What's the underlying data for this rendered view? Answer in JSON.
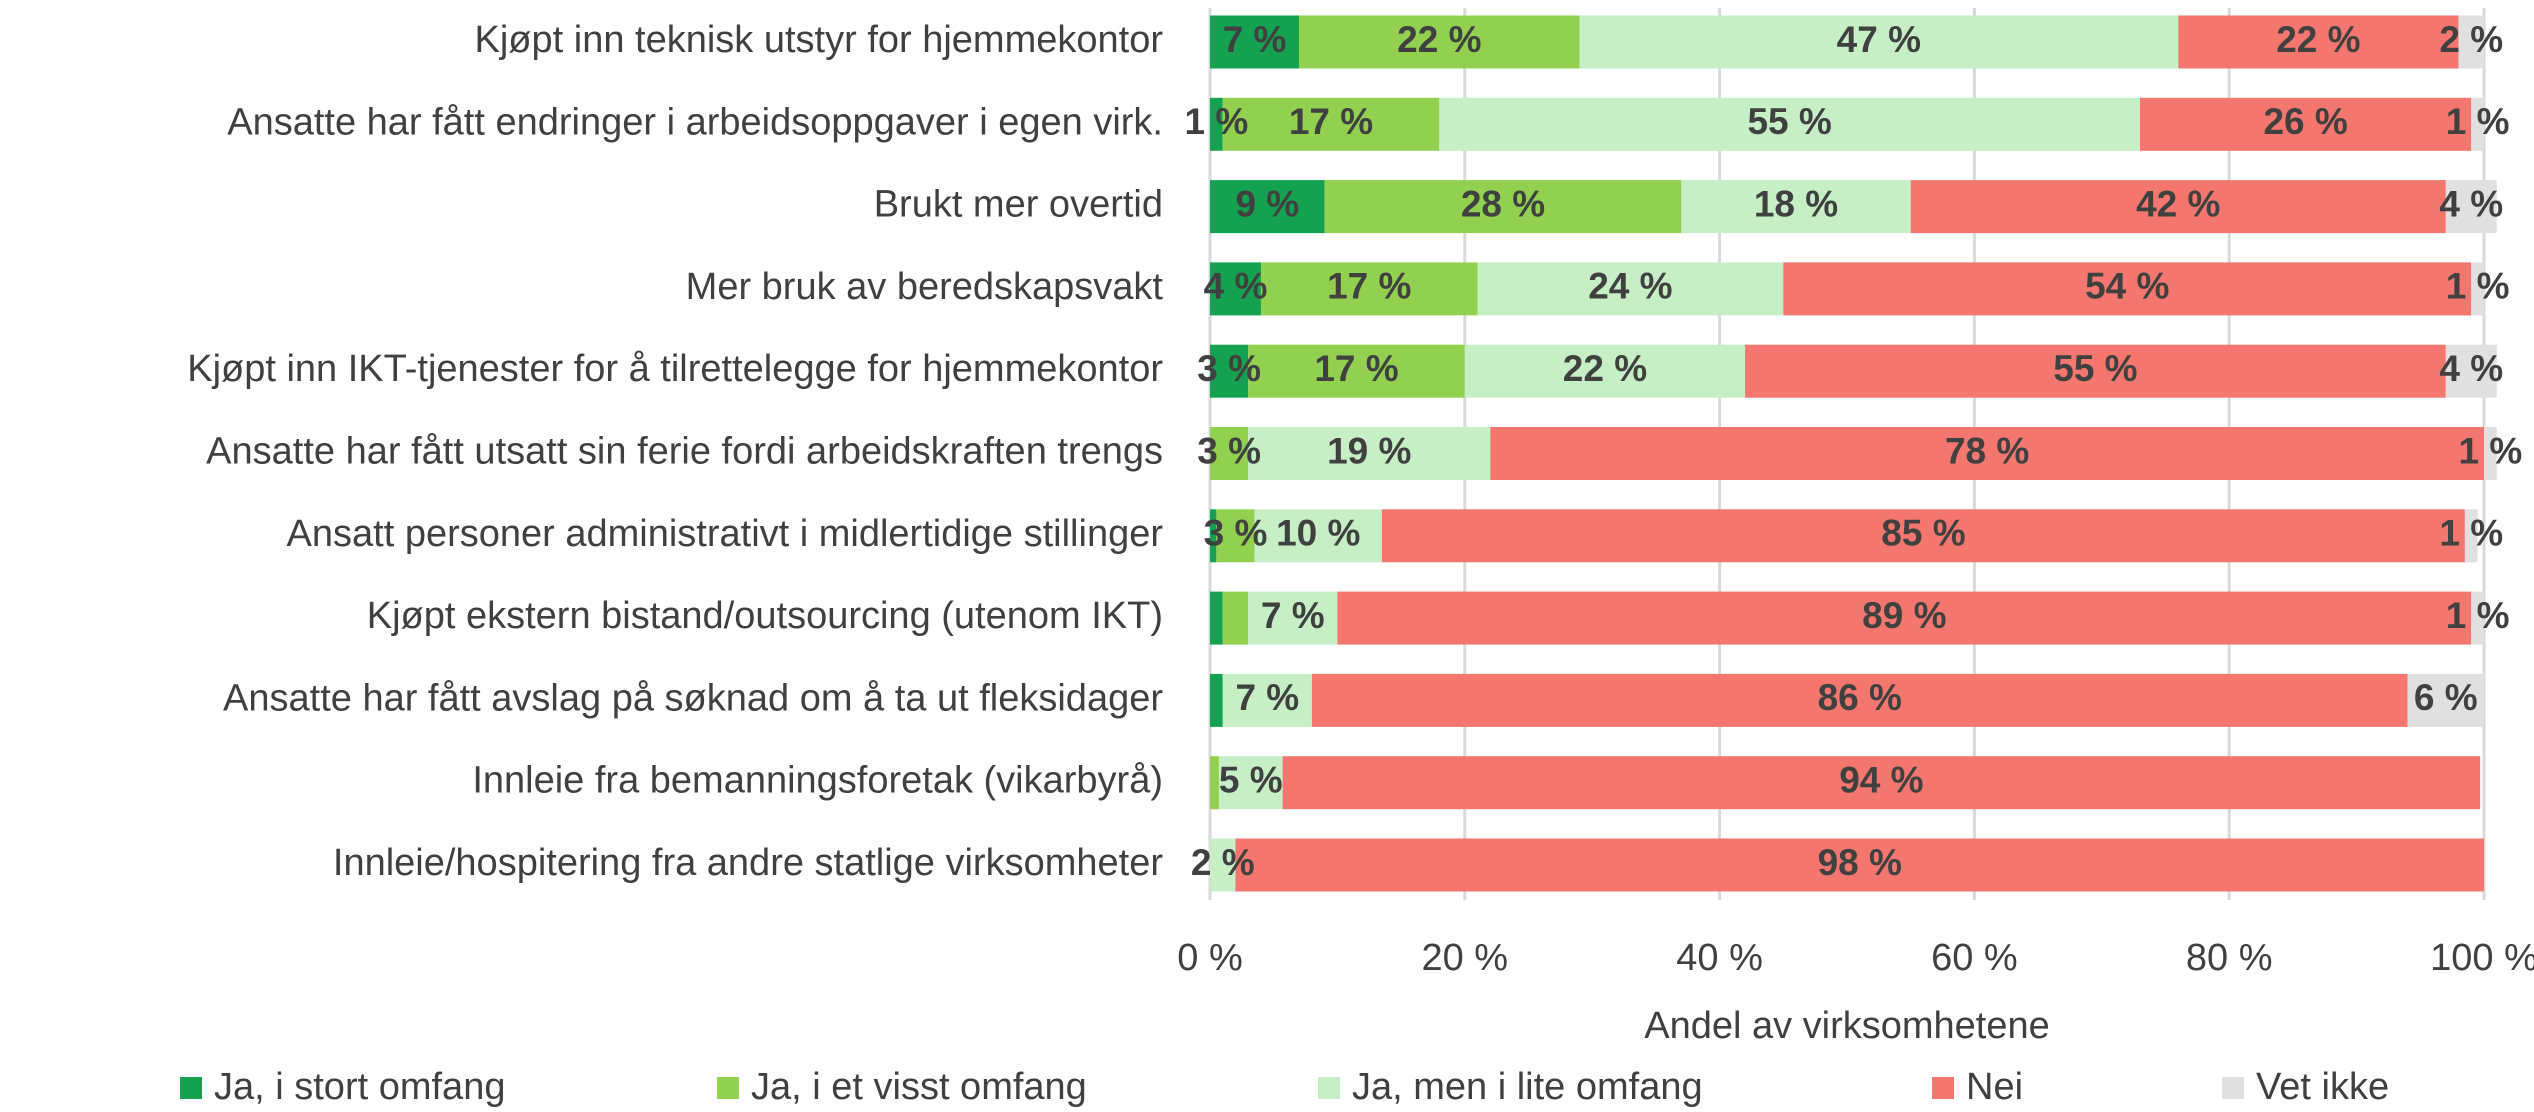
{
  "chart_data": {
    "type": "stacked_barh",
    "categories": [
      "Kjøpt inn teknisk utstyr for hjemmekontor",
      "Ansatte har fått endringer i arbeidsoppgaver i egen virk.",
      "Brukt mer overtid",
      "Mer bruk av beredskapsvakt",
      "Kjøpt inn IKT-tjenester for å tilrettelegge for hjemmekontor",
      "Ansatte har fått utsatt sin ferie fordi arbeidskraften trengs",
      "Ansatt personer administrativt i midlertidige stillinger",
      "Kjøpt ekstern bistand/outsourcing (utenom IKT)",
      "Ansatte har fått avslag på søknad om å ta ut fleksidager",
      "Innleie fra bemanningsforetak (vikarbyrå)",
      "Innleie/hospitering fra andre statlige virksomheter"
    ],
    "series": [
      {
        "name": "Ja, i stort omfang",
        "color": "#14a150",
        "values": [
          7,
          1,
          9,
          4,
          3,
          0,
          0.5,
          1,
          1,
          0,
          0
        ],
        "value_labels": [
          "7 %",
          "1 %",
          "9 %",
          "4 %",
          "3 %",
          null,
          null,
          null,
          null,
          null,
          null
        ]
      },
      {
        "name": "Ja, i et visst omfang",
        "color": "#92d050",
        "values": [
          22,
          17,
          28,
          17,
          17,
          3,
          3,
          2,
          0,
          0.7,
          0
        ],
        "value_labels": [
          "22 %",
          "17 %",
          "28 %",
          "17 %",
          "17 %",
          "3 %",
          "3 %",
          null,
          null,
          null,
          null
        ]
      },
      {
        "name": "Ja, men i lite omfang",
        "color": "#c6efc6",
        "values": [
          47,
          55,
          18,
          24,
          22,
          19,
          10,
          7,
          7,
          5,
          2
        ],
        "value_labels": [
          "47 %",
          "55 %",
          "18 %",
          "24 %",
          "22 %",
          "19 %",
          "10 %",
          "7 %",
          "7 %",
          "5 %",
          "2 %"
        ]
      },
      {
        "name": "Nei",
        "color": "#f3776e",
        "values": [
          22,
          26,
          42,
          54,
          55,
          78,
          85,
          89,
          86,
          94,
          98
        ],
        "value_labels": [
          "22 %",
          "26 %",
          "42 %",
          "54 %",
          "55 %",
          "78 %",
          "85 %",
          "89 %",
          "86 %",
          "94 %",
          "98 %"
        ]
      },
      {
        "name": "Vet ikke",
        "color": "#e0e0e0",
        "values": [
          2,
          1,
          4,
          1,
          4,
          1,
          1,
          1,
          6,
          0,
          0
        ],
        "value_labels": [
          "2 %",
          "1 %",
          "4 %",
          "1 %",
          "4 %",
          "1 %",
          "1 %",
          "1 %",
          "6 %",
          null,
          null
        ]
      }
    ],
    "xlabel": "Andel av virksomhetene",
    "xlim": [
      0,
      100
    ],
    "xticks": [
      {
        "value": 0,
        "label": "0 %"
      },
      {
        "value": 20,
        "label": "20 %"
      },
      {
        "value": 40,
        "label": "40 %"
      },
      {
        "value": 60,
        "label": "60 %"
      },
      {
        "value": 80,
        "label": "80 %"
      },
      {
        "value": 100,
        "label": "100 %"
      }
    ],
    "grid": true,
    "legend": "bottom"
  }
}
